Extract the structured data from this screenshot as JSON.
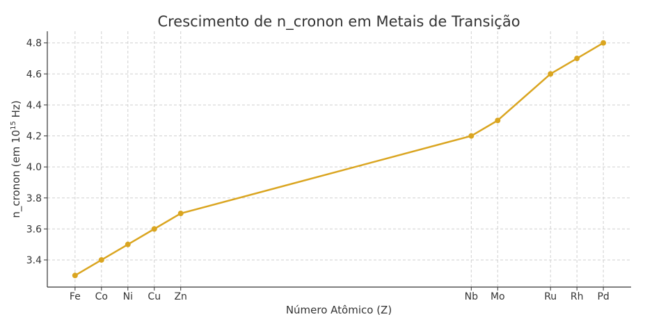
{
  "chart_data": {
    "type": "line",
    "title": "Crescimento de n_cronon em Metais de Transição",
    "xlabel": "Número Atômico (Z)",
    "ylabel_prefix": "n_cronon (em 10",
    "ylabel_exponent": "15",
    "ylabel_suffix": " Hz)",
    "x": [
      26,
      27,
      28,
      29,
      30,
      41,
      42,
      44,
      45,
      46
    ],
    "x_tick_labels": [
      "Fe",
      "Co",
      "Ni",
      "Cu",
      "Zn",
      "Nb",
      "Mo",
      "Ru",
      "Rh",
      "Pd"
    ],
    "values": [
      3.3,
      3.4,
      3.5,
      3.6,
      3.7,
      4.2,
      4.3,
      4.6,
      4.7,
      4.8
    ],
    "xlim": [
      24.95,
      47.05
    ],
    "ylim": [
      3.225,
      4.875
    ],
    "y_ticks": [
      3.4,
      3.6,
      3.8,
      4.0,
      4.2,
      4.4,
      4.6,
      4.8
    ],
    "grid": true,
    "line_color": "#DAA520",
    "legend": "none"
  }
}
